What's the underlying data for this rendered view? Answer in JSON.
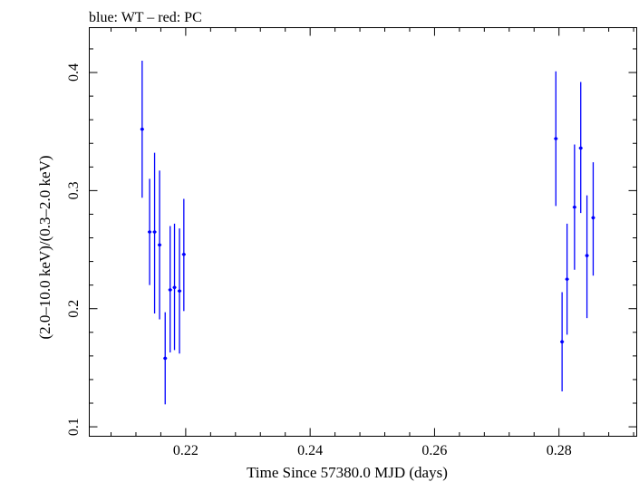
{
  "chart_data": {
    "type": "scatter",
    "title": "blue: WT – red: PC",
    "xlabel": "Time Since 57380.0 MJD (days)",
    "ylabel": "(2.0–10.0 keV)/(0.3–2.0 keV)",
    "xlim": [
      0.2045,
      0.2925
    ],
    "ylim": [
      0.092,
      0.438
    ],
    "x_ticks": [
      0.22,
      0.24,
      0.26,
      0.28
    ],
    "x_tick_labels": [
      "0.22",
      "0.24",
      "0.26",
      "0.28"
    ],
    "y_ticks": [
      0.1,
      0.2,
      0.3,
      0.4
    ],
    "y_tick_labels": [
      "0.1",
      "0.2",
      "0.3",
      "0.4"
    ],
    "grid": false,
    "series": [
      {
        "color": "#0000ff",
        "points": [
          {
            "x": 0.213,
            "y": 0.352,
            "ylo": 0.294,
            "yhi": 0.41,
            "xerr": 0.0003
          },
          {
            "x": 0.2142,
            "y": 0.265,
            "ylo": 0.22,
            "yhi": 0.31,
            "xerr": 0.0003
          },
          {
            "x": 0.215,
            "y": 0.265,
            "ylo": 0.196,
            "yhi": 0.332,
            "xerr": 0.0003
          },
          {
            "x": 0.2158,
            "y": 0.254,
            "ylo": 0.191,
            "yhi": 0.317,
            "xerr": 0.0003
          },
          {
            "x": 0.2167,
            "y": 0.158,
            "ylo": 0.119,
            "yhi": 0.197,
            "xerr": 0.0003
          },
          {
            "x": 0.2175,
            "y": 0.216,
            "ylo": 0.163,
            "yhi": 0.27,
            "xerr": 0.0003
          },
          {
            "x": 0.2182,
            "y": 0.218,
            "ylo": 0.165,
            "yhi": 0.272,
            "xerr": 0.0003
          },
          {
            "x": 0.219,
            "y": 0.215,
            "ylo": 0.162,
            "yhi": 0.268,
            "xerr": 0.0003
          },
          {
            "x": 0.2197,
            "y": 0.246,
            "ylo": 0.198,
            "yhi": 0.293,
            "xerr": 0.0003
          },
          {
            "x": 0.2795,
            "y": 0.344,
            "ylo": 0.287,
            "yhi": 0.401,
            "xerr": 0.0003
          },
          {
            "x": 0.2805,
            "y": 0.172,
            "ylo": 0.13,
            "yhi": 0.214,
            "xerr": 0.0003
          },
          {
            "x": 0.2813,
            "y": 0.225,
            "ylo": 0.178,
            "yhi": 0.272,
            "xerr": 0.0003
          },
          {
            "x": 0.2825,
            "y": 0.286,
            "ylo": 0.233,
            "yhi": 0.339,
            "xerr": 0.0003
          },
          {
            "x": 0.2835,
            "y": 0.336,
            "ylo": 0.281,
            "yhi": 0.392,
            "xerr": 0.0003
          },
          {
            "x": 0.2845,
            "y": 0.245,
            "ylo": 0.192,
            "yhi": 0.296,
            "xerr": 0.0003
          },
          {
            "x": 0.2855,
            "y": 0.277,
            "ylo": 0.228,
            "yhi": 0.324,
            "xerr": 0.0003
          }
        ]
      }
    ]
  }
}
